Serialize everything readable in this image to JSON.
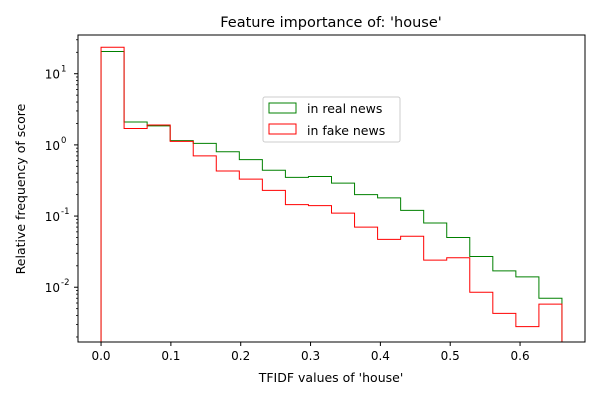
{
  "chart_data": {
    "type": "line",
    "subtype": "step histogram",
    "title": "Feature importance of: 'house'",
    "xlabel": "TFIDF values of 'house'",
    "ylabel": "Relative frequency of score",
    "xscale": "linear",
    "yscale": "log",
    "xlim": [
      -0.033,
      0.693
    ],
    "ylim": [
      0.0017,
      35
    ],
    "xticks": [
      "0.0",
      "0.1",
      "0.2",
      "0.3",
      "0.4",
      "0.5",
      "0.6"
    ],
    "xtick_values": [
      0.0,
      0.1,
      0.2,
      0.3,
      0.4,
      0.5,
      0.6
    ],
    "yticks": [
      "10",
      "10",
      "10",
      "10"
    ],
    "ytick_exponents": [
      "1",
      "0",
      "-1",
      "-2"
    ],
    "ytick_values": [
      10,
      1,
      0.1,
      0.01
    ],
    "bin_edges": [
      0.0,
      0.033,
      0.066,
      0.099,
      0.132,
      0.165,
      0.198,
      0.231,
      0.264,
      0.297,
      0.33,
      0.363,
      0.396,
      0.429,
      0.462,
      0.495,
      0.528,
      0.561,
      0.594,
      0.627,
      0.66
    ],
    "grid": false,
    "legend_position": "upper-center",
    "series": [
      {
        "name": "in real news",
        "color": "#008000",
        "values": [
          20.5,
          2.1,
          1.85,
          1.15,
          1.05,
          0.8,
          0.62,
          0.44,
          0.35,
          0.36,
          0.29,
          0.2,
          0.18,
          0.12,
          0.08,
          0.05,
          0.027,
          0.017,
          0.014,
          0.007
        ]
      },
      {
        "name": "in fake news",
        "color": "#ff0000",
        "values": [
          23.5,
          1.7,
          1.9,
          1.12,
          0.7,
          0.43,
          0.33,
          0.23,
          0.145,
          0.14,
          0.11,
          0.07,
          0.047,
          0.052,
          0.024,
          0.026,
          0.0085,
          0.0043,
          0.0028,
          0.0058
        ]
      }
    ]
  }
}
